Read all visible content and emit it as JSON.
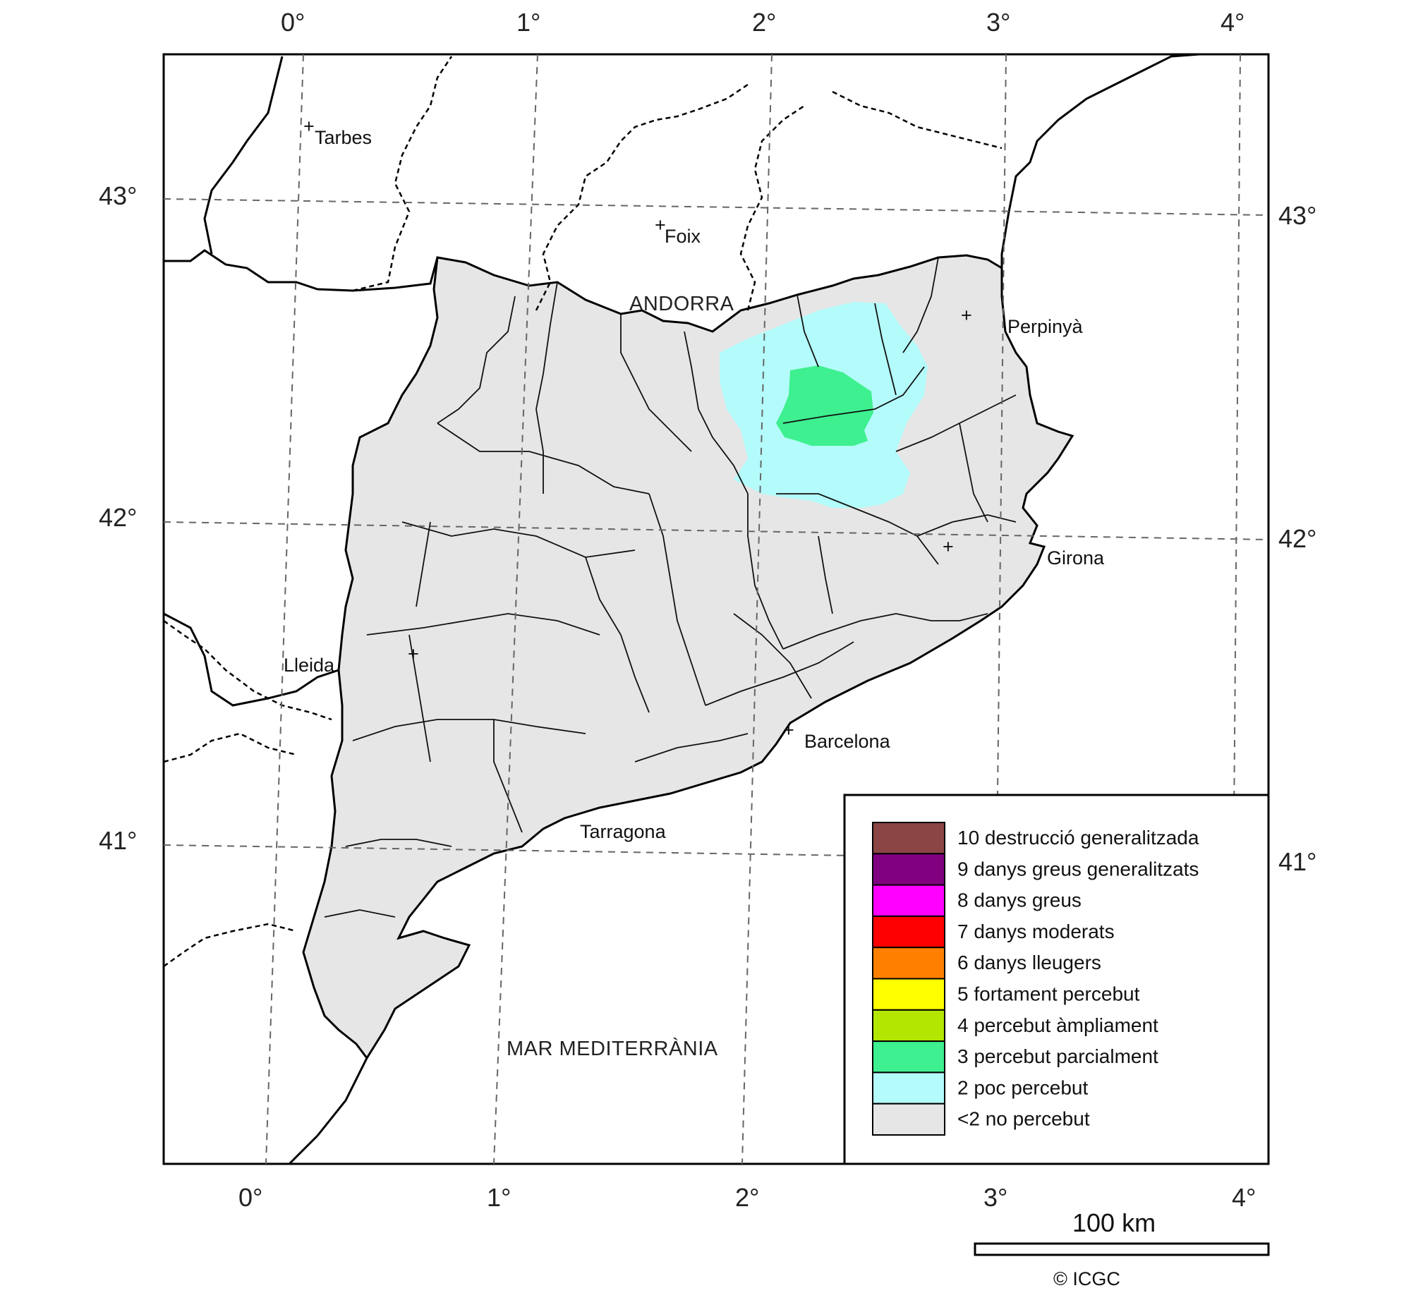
{
  "map": {
    "top_axis_labels": [
      "0°",
      "1°",
      "2°",
      "3°",
      "4°"
    ],
    "bottom_axis_labels": [
      "0°",
      "1°",
      "2°",
      "3°",
      "4°"
    ],
    "left_axis_labels": [
      "43°",
      "42°",
      "41°"
    ],
    "right_axis_labels": [
      "43°",
      "42°",
      "41°"
    ],
    "cities": [
      {
        "name": "Tarbes",
        "marker": "+"
      },
      {
        "name": "Foix",
        "marker": "+"
      },
      {
        "name": "Perpinyà",
        "marker": "+"
      },
      {
        "name": "Girona",
        "marker": "+"
      },
      {
        "name": "Lleida",
        "marker": "+"
      },
      {
        "name": "Barcelona",
        "marker": "+"
      },
      {
        "name": "Tarragona",
        "marker": ""
      }
    ],
    "regions": {
      "andorra": "ANDORRA",
      "sea": "MAR MEDITERRÀNIA"
    },
    "intensity_zones": [
      {
        "intensity": "<2",
        "color": "#e6e6e6"
      },
      {
        "intensity": "2",
        "color": "#b4fbfb"
      },
      {
        "intensity": "3",
        "color": "#3ef08f"
      }
    ]
  },
  "legend": {
    "items": [
      {
        "label": "10 destrucció generalitzada",
        "color": "#8b4545"
      },
      {
        "label": "9 danys greus generalitzats",
        "color": "#800080"
      },
      {
        "label": "8 danys greus",
        "color": "#ff00ff"
      },
      {
        "label": "7 danys moderats",
        "color": "#ff0000"
      },
      {
        "label": "6 danys lleugers",
        "color": "#ff8000"
      },
      {
        "label": "5 fortament percebut",
        "color": "#ffff00"
      },
      {
        "label": "4 percebut àmpliament",
        "color": "#b3e600"
      },
      {
        "label": "3 percebut parcialment",
        "color": "#3ef08f"
      },
      {
        "label": "2 poc percebut",
        "color": "#b4fbfb"
      },
      {
        "label": "<2 no percebut",
        "color": "#e6e6e6"
      }
    ]
  },
  "scale_bar": {
    "label": "100 km"
  },
  "credit": "© ICGC"
}
